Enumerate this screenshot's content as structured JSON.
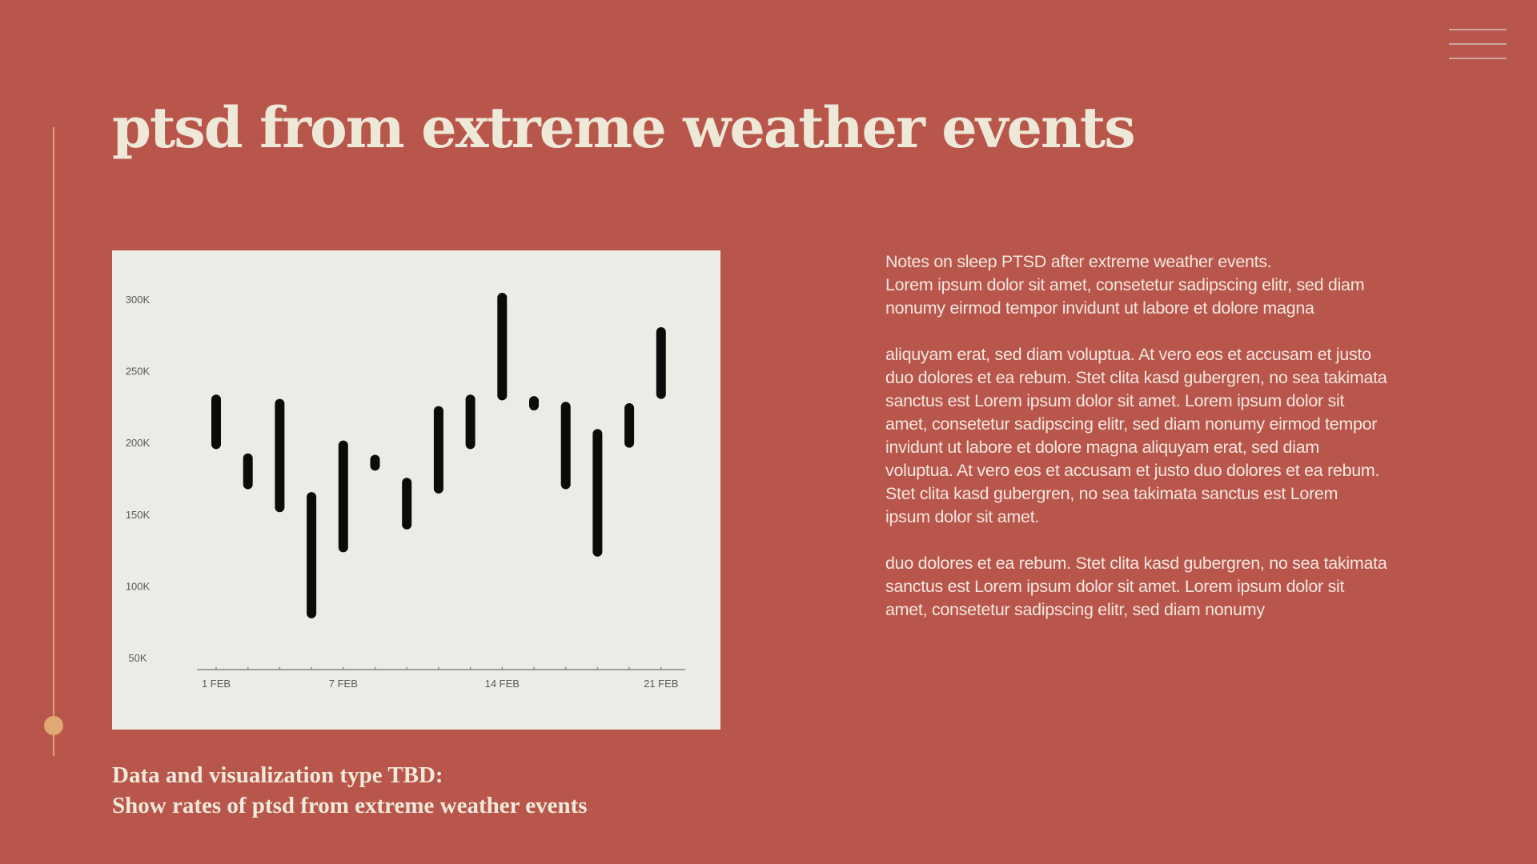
{
  "slide": {
    "title": "ptsd from extreme weather events",
    "caption_lines": [
      "Data and visualization type TBD:",
      "Show rates of ptsd from extreme weather events"
    ],
    "notes": [
      [
        "Notes on sleep PTSD after extreme weather events.",
        "Lorem ipsum dolor sit amet, consetetur sadipscing elitr, sed diam",
        "nonumy eirmod tempor invidunt ut labore et dolore magna"
      ],
      [
        "aliquyam erat, sed diam voluptua. At vero eos et accusam et justo",
        "duo dolores et ea rebum. Stet clita kasd gubergren, no sea takimata",
        "sanctus est Lorem ipsum dolor sit amet. Lorem ipsum dolor sit",
        "amet, consetetur sadipscing elitr, sed diam nonumy eirmod tempor",
        "invidunt ut labore et dolore magna aliquyam erat, sed diam",
        "voluptua. At vero eos et accusam et justo duo dolores et ea rebum.",
        "Stet clita kasd gubergren, no sea takimata sanctus est Lorem",
        "ipsum dolor sit amet."
      ],
      [
        "duo dolores et ea rebum. Stet clita kasd gubergren, no sea takimata",
        "sanctus est Lorem ipsum dolor sit amet. Lorem ipsum dolor sit",
        "amet, consetetur sadipscing elitr, sed diam nonumy"
      ]
    ]
  },
  "icons": {
    "menu": "hamburger-menu-icon",
    "timeline_marker": "timeline-dot-icon"
  },
  "colors": {
    "background": "#b8564b",
    "title": "#eee8d8",
    "accent": "#e0a873",
    "chart_background": "#ecebe6",
    "bar": "#0b0b0b",
    "axis_text": "#5a5a5a"
  },
  "chart_data": {
    "type": "bar",
    "subtype": "floating-range",
    "title": "",
    "xlabel": "",
    "ylabel": "",
    "ylim": [
      50000,
      300000
    ],
    "y_ticks": [
      {
        "value": 50000,
        "label": "50K"
      },
      {
        "value": 100000,
        "label": "100K"
      },
      {
        "value": 150000,
        "label": "150K"
      },
      {
        "value": 200000,
        "label": "200K"
      },
      {
        "value": 250000,
        "label": "250K"
      },
      {
        "value": 300000,
        "label": "300K"
      }
    ],
    "x_tick_labels": [
      {
        "index": 0,
        "label": "1 FEB"
      },
      {
        "index": 4,
        "label": "7 FEB"
      },
      {
        "index": 9,
        "label": "14 FEB"
      },
      {
        "index": 14,
        "label": "21 FEB"
      }
    ],
    "grid": false,
    "legend": "none",
    "ranges": [
      {
        "low": 196000,
        "high": 234000
      },
      {
        "low": 168000,
        "high": 193000
      },
      {
        "low": 152000,
        "high": 231000
      },
      {
        "low": 78000,
        "high": 166000
      },
      {
        "low": 124000,
        "high": 202000
      },
      {
        "low": 181000,
        "high": 192000
      },
      {
        "low": 140000,
        "high": 176000
      },
      {
        "low": 165000,
        "high": 226000
      },
      {
        "low": 196000,
        "high": 234000
      },
      {
        "low": 230000,
        "high": 305000
      },
      {
        "low": 223000,
        "high": 233000
      },
      {
        "low": 168000,
        "high": 229000
      },
      {
        "low": 121000,
        "high": 210000
      },
      {
        "low": 197000,
        "high": 228000
      },
      {
        "low": 231000,
        "high": 281000
      }
    ]
  }
}
